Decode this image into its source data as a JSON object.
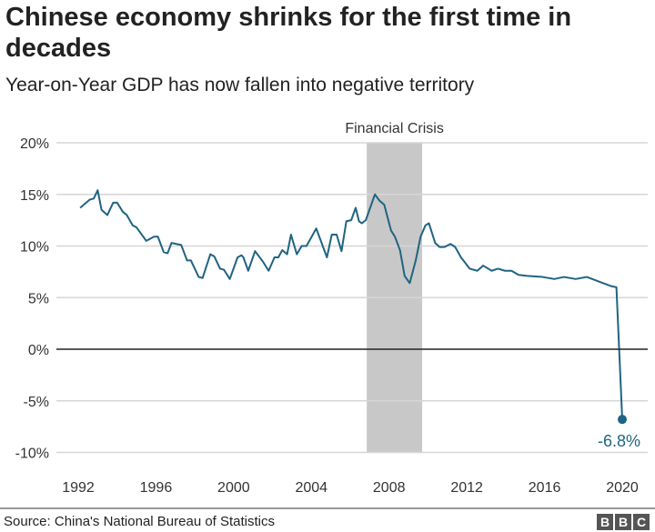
{
  "title": "Chinese economy shrinks for the first time in decades",
  "subtitle": "Year-on-Year GDP has now fallen into negative territory",
  "source": "Source: China's National Bureau of Statistics",
  "logo": "BBC",
  "colors": {
    "line": "#1f6482",
    "band": "#c8c8c8",
    "grid": "#d6d6d6",
    "zero": "#222222",
    "label": "#1f6482"
  },
  "chart_data": {
    "type": "line",
    "title": "Chinese economy shrinks for the first time in decades",
    "xlabel": "",
    "ylabel": "",
    "xlim": [
      1992,
      2020
    ],
    "ylim": [
      -10,
      20
    ],
    "yticks": [
      20,
      15,
      10,
      5,
      0,
      -5,
      -10
    ],
    "ytick_labels": [
      "20%",
      "15%",
      "10%",
      "5%",
      "0%",
      "-5%",
      "-10%"
    ],
    "xticks": [
      1992,
      1996,
      2000,
      2004,
      2008,
      2012,
      2016,
      2020
    ],
    "xtick_labels": [
      "1992",
      "1996",
      "2000",
      "2004",
      "2008",
      "2012",
      "2016",
      "2020"
    ],
    "grid": "horizontal",
    "shaded_region": {
      "label": "Financial Crisis",
      "x": [
        2006.85,
        2009.7
      ]
    },
    "end_label": "-6.8%",
    "series": [
      {
        "x": [
          1992.1,
          1992.6,
          1992.8,
          1993.0,
          1993.2,
          1993.5,
          1993.8,
          1994.0,
          1994.3,
          1994.5,
          1994.8,
          1995.0,
          1995.5,
          1995.9,
          1996.1,
          1996.4,
          1996.6,
          1996.8,
          1997.3,
          1997.6,
          1997.8,
          1998.2,
          1998.4,
          1998.8,
          1999.0,
          1999.3,
          1999.5,
          1999.8,
          2000.2,
          2000.4,
          2000.5,
          2000.75,
          2001.1,
          2001.5,
          2001.8,
          2002.1,
          2002.3,
          2002.5,
          2002.75,
          2002.95,
          2003.25,
          2003.5,
          2003.75,
          2004.25,
          2004.8,
          2005.05,
          2005.3,
          2005.55,
          2005.8,
          2006.05,
          2006.28,
          2006.45,
          2006.6,
          2006.8,
          2007.27,
          2007.5,
          2007.75,
          2008.1,
          2008.3,
          2008.56,
          2008.8,
          2009.06,
          2009.37,
          2009.62,
          2009.87,
          2010.05,
          2010.37,
          2010.6,
          2010.85,
          2011.16,
          2011.4,
          2011.7,
          2012.15,
          2012.54,
          2012.84,
          2013.28,
          2013.6,
          2013.97,
          2014.3,
          2014.66,
          2015.1,
          2015.9,
          2016.5,
          2017.0,
          2017.6,
          2018.18,
          2018.87,
          2019.45,
          2019.7,
          2020.0
        ],
        "y": [
          13.7,
          14.5,
          14.6,
          15.4,
          13.5,
          13.0,
          14.2,
          14.2,
          13.3,
          13.0,
          12.0,
          11.8,
          10.5,
          10.9,
          10.9,
          9.4,
          9.3,
          10.3,
          10.1,
          8.6,
          8.6,
          7.0,
          6.9,
          9.2,
          9.0,
          7.8,
          7.7,
          6.8,
          8.9,
          9.1,
          8.9,
          7.6,
          9.5,
          8.5,
          7.6,
          8.9,
          8.9,
          9.6,
          9.2,
          11.1,
          9.2,
          10.0,
          10.0,
          11.7,
          8.9,
          11.1,
          11.1,
          9.5,
          12.4,
          12.5,
          13.7,
          12.4,
          12.2,
          12.5,
          15.0,
          14.4,
          14.0,
          11.5,
          10.9,
          9.6,
          7.1,
          6.4,
          8.6,
          10.9,
          12.0,
          12.2,
          10.3,
          9.9,
          9.9,
          10.2,
          9.9,
          8.9,
          7.8,
          7.6,
          8.1,
          7.6,
          7.8,
          7.6,
          7.6,
          7.2,
          7.1,
          7.0,
          6.8,
          7.0,
          6.8,
          7.0,
          6.5,
          6.1,
          6.0,
          -6.8
        ]
      }
    ]
  }
}
